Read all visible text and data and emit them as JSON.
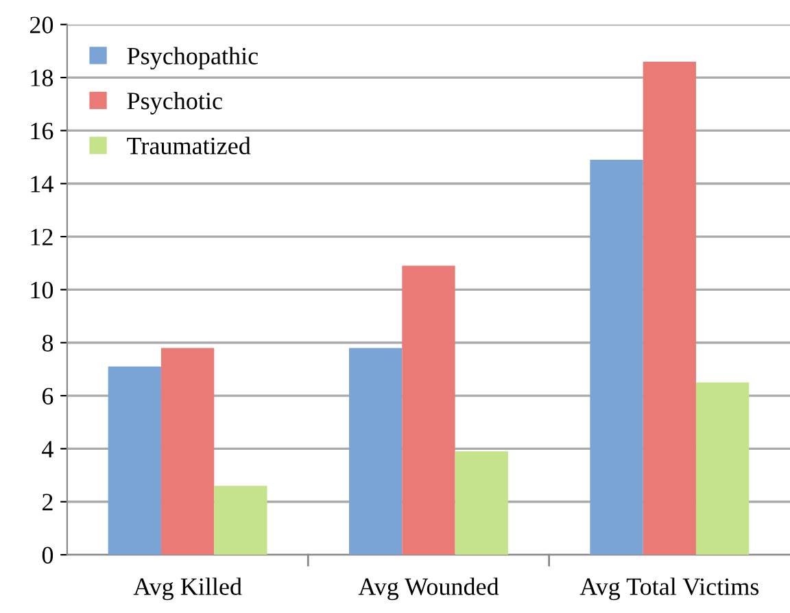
{
  "chart_data": {
    "type": "bar",
    "categories": [
      "Avg Killed",
      "Avg Wounded",
      "Avg Total Victims"
    ],
    "series": [
      {
        "name": "Psychopathic",
        "color": "#7aa3d6",
        "values": [
          7.1,
          7.8,
          14.9
        ]
      },
      {
        "name": "Psychotic",
        "color": "#ea7a76",
        "values": [
          7.8,
          10.9,
          18.6
        ]
      },
      {
        "name": "Traumatized",
        "color": "#c5e38a",
        "values": [
          2.6,
          3.9,
          6.5
        ]
      }
    ],
    "ylim": [
      0,
      20
    ],
    "yticks": [
      0,
      2,
      4,
      6,
      8,
      10,
      12,
      14,
      16,
      18,
      20
    ],
    "grid": "y",
    "legend": "top left"
  }
}
